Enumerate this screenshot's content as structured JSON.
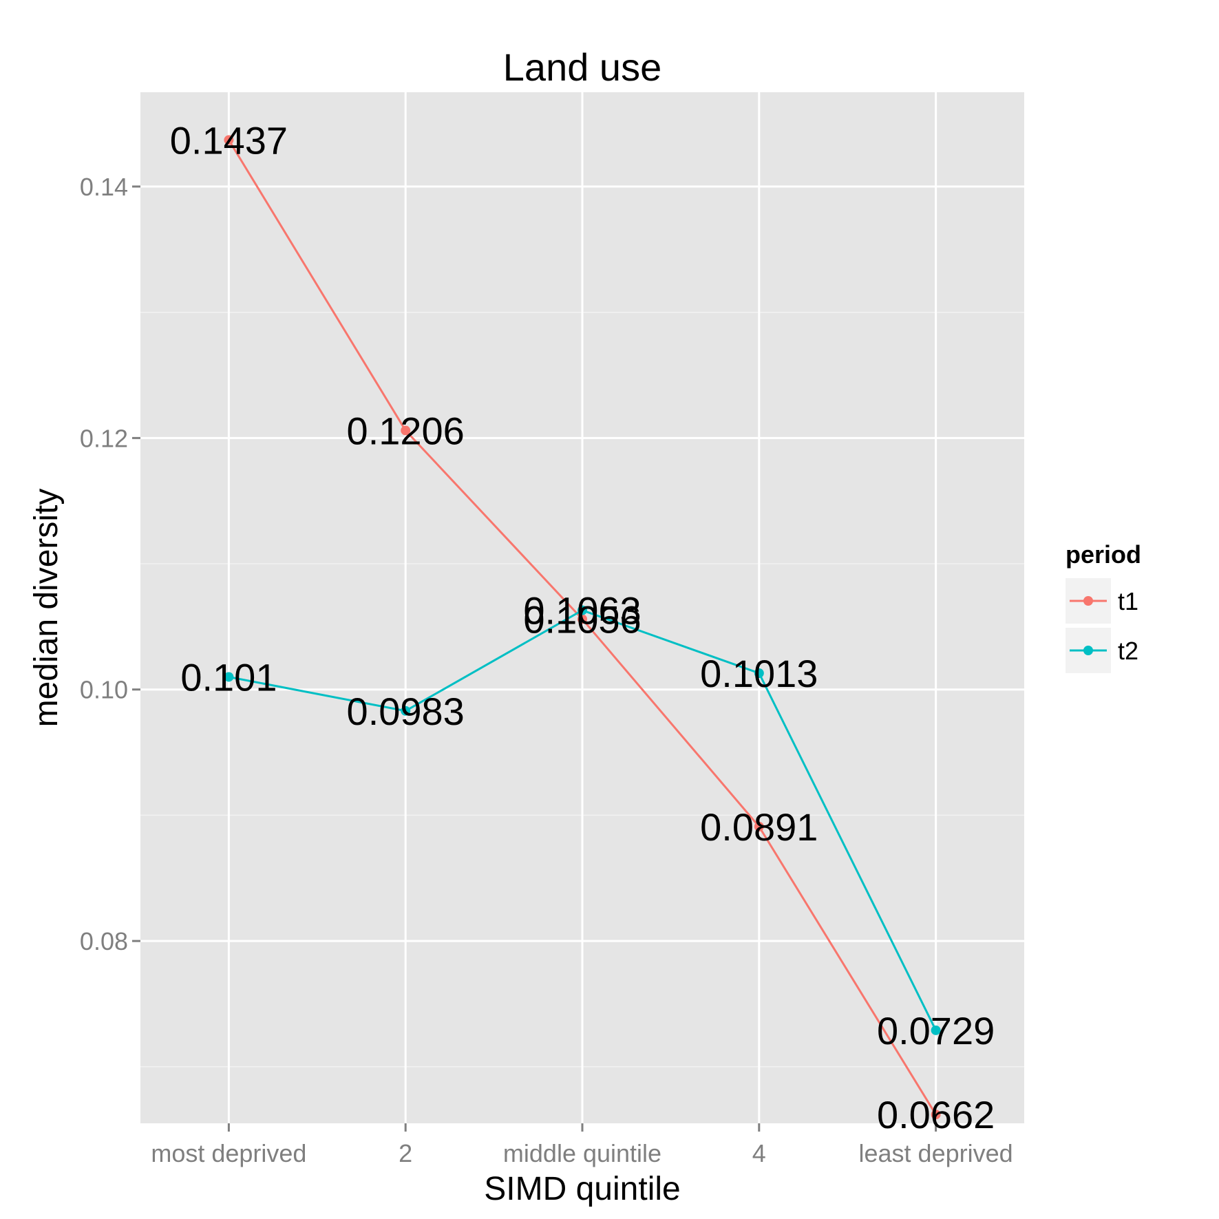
{
  "chart_data": {
    "type": "line",
    "title": "Land use",
    "xlabel": "SIMD quintile",
    "ylabel": "median diversity",
    "categories": [
      "most deprived",
      "2",
      "middle quintile",
      "4",
      "least deprived"
    ],
    "ylim": [
      0.0655,
      0.1475
    ],
    "yticks": [
      0.08,
      0.1,
      0.12,
      0.14
    ],
    "ytick_labels": [
      "0.08",
      "0.10",
      "0.12",
      "0.14"
    ],
    "grid": true,
    "legend": {
      "title": "period",
      "position": "right"
    },
    "series": [
      {
        "name": "t1",
        "color": "#F8766D",
        "values": [
          0.1437,
          0.1206,
          0.1056,
          0.0891,
          0.0662
        ],
        "labels": [
          "0.1437",
          "0.1206",
          "0.1056",
          "0.0891",
          "0.0662"
        ]
      },
      {
        "name": "t2",
        "color": "#00BFC4",
        "values": [
          0.101,
          0.0983,
          0.1063,
          0.1013,
          0.0729
        ],
        "labels": [
          "0.101",
          "0.0983",
          "0.1063",
          "0.1013",
          "0.0729"
        ]
      }
    ]
  }
}
